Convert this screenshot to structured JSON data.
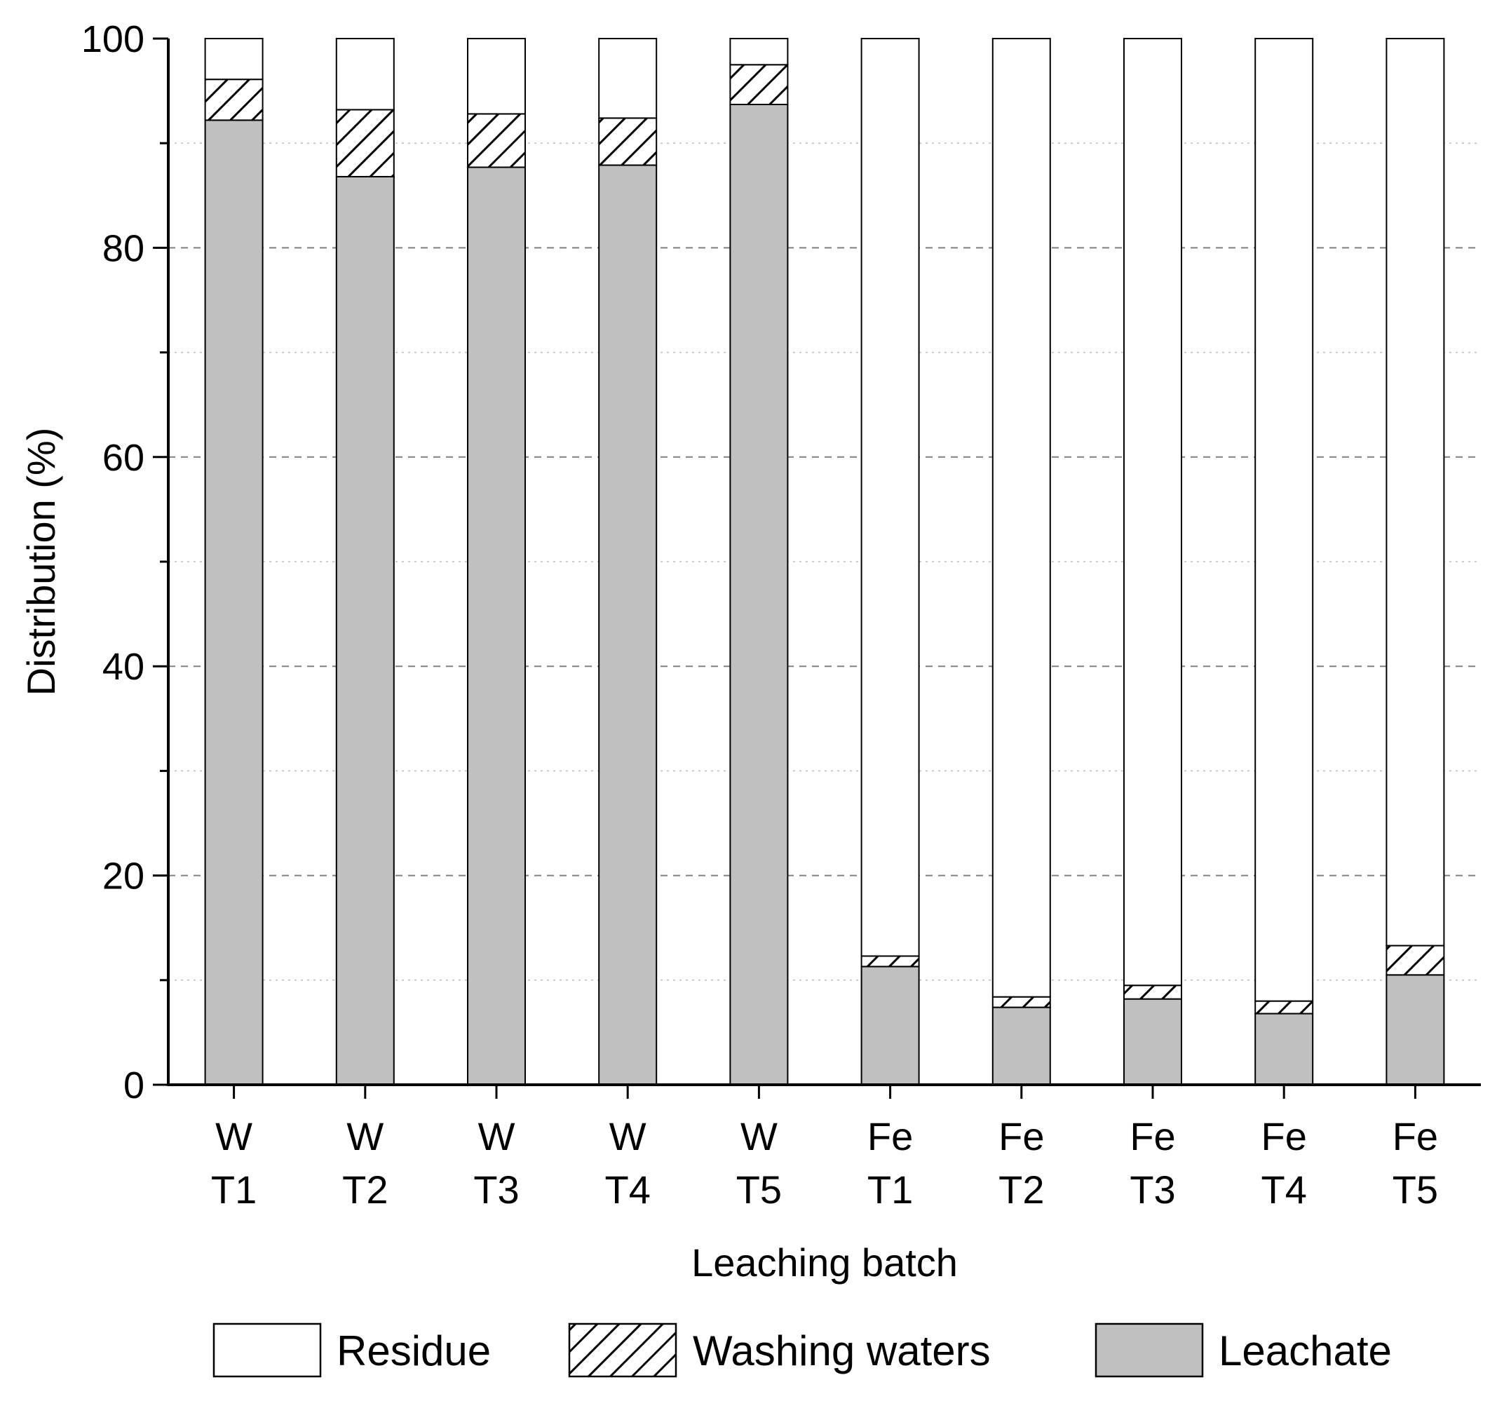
{
  "chart_data": {
    "type": "bar",
    "stacked": true,
    "categories": [
      [
        "W",
        "T1"
      ],
      [
        "W",
        "T2"
      ],
      [
        "W",
        "T3"
      ],
      [
        "W",
        "T4"
      ],
      [
        "W",
        "T5"
      ],
      [
        "Fe",
        "T1"
      ],
      [
        "Fe",
        "T2"
      ],
      [
        "Fe",
        "T3"
      ],
      [
        "Fe",
        "T4"
      ],
      [
        "Fe",
        "T5"
      ]
    ],
    "series": [
      {
        "name": "Leachate",
        "fill": "#c0c0c0",
        "pattern": "solid",
        "values": [
          92.2,
          86.8,
          87.7,
          87.9,
          93.7,
          11.3,
          7.4,
          8.2,
          6.8,
          10.5
        ]
      },
      {
        "name": "Washing waters",
        "fill": "#ffffff",
        "pattern": "hatch",
        "values": [
          3.9,
          6.4,
          5.1,
          4.5,
          3.8,
          1.0,
          1.0,
          1.3,
          1.2,
          2.8
        ]
      },
      {
        "name": "Residue",
        "fill": "#ffffff",
        "pattern": "solid",
        "values": [
          3.9,
          6.8,
          7.2,
          7.6,
          2.5,
          87.7,
          91.6,
          90.5,
          92.0,
          86.7
        ]
      }
    ],
    "legend_order": [
      "Residue",
      "Washing waters",
      "Leachate"
    ],
    "legend_position": "bottom",
    "xlabel": "Leaching batch",
    "ylabel": "Distribution (%)",
    "ylim": [
      0,
      100
    ],
    "yticks": [
      "0",
      "20",
      "40",
      "60",
      "80",
      "100"
    ],
    "y_major_step": 20,
    "y_minor_step": 10,
    "grid": "horizontal dashed",
    "colors": {
      "axis": "#000000",
      "grid": "#808080",
      "leachate": "#c0c0c0"
    }
  }
}
